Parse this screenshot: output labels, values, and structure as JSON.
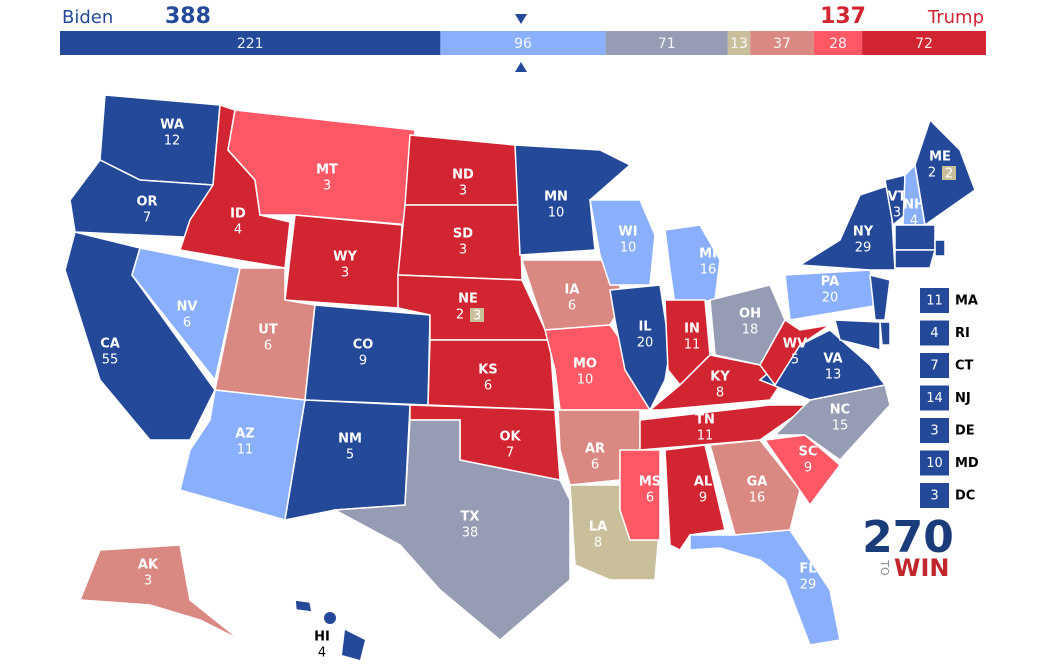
{
  "header": {
    "left_name": "Biden",
    "left_total": 388,
    "right_total": 137,
    "right_name": "Trump",
    "left_color": "#244999",
    "right_color": "#d22532"
  },
  "bar": {
    "segments": [
      {
        "value": 221,
        "color": "#244999"
      },
      {
        "value": 96,
        "color": "#8aaffd"
      },
      {
        "value": 71,
        "color": "#979cb5"
      },
      {
        "value": 13,
        "color": "#c9c09b"
      },
      {
        "value": 37,
        "color": "#d98982"
      },
      {
        "value": 28,
        "color": "#ff5865"
      },
      {
        "value": 72,
        "color": "#d22532"
      }
    ]
  },
  "states": [
    {
      "abbr": "WA",
      "ev": 12,
      "color": "#244999"
    },
    {
      "abbr": "OR",
      "ev": 7,
      "color": "#244999"
    },
    {
      "abbr": "CA",
      "ev": 55,
      "color": "#244999"
    },
    {
      "abbr": "NV",
      "ev": 6,
      "color": "#8aaffd"
    },
    {
      "abbr": "ID",
      "ev": 4,
      "color": "#d22532"
    },
    {
      "abbr": "MT",
      "ev": 3,
      "color": "#ff5865"
    },
    {
      "abbr": "WY",
      "ev": 3,
      "color": "#d22532"
    },
    {
      "abbr": "UT",
      "ev": 6,
      "color": "#d98982"
    },
    {
      "abbr": "AZ",
      "ev": 11,
      "color": "#8aaffd"
    },
    {
      "abbr": "CO",
      "ev": 9,
      "color": "#244999"
    },
    {
      "abbr": "NM",
      "ev": 5,
      "color": "#244999"
    },
    {
      "abbr": "ND",
      "ev": 3,
      "color": "#d22532"
    },
    {
      "abbr": "SD",
      "ev": 3,
      "color": "#d22532"
    },
    {
      "abbr": "NE",
      "ev": 2,
      "color": "#d22532",
      "district_ev": 3,
      "district_color": "#c9c09b"
    },
    {
      "abbr": "KS",
      "ev": 6,
      "color": "#d22532"
    },
    {
      "abbr": "OK",
      "ev": 7,
      "color": "#d22532"
    },
    {
      "abbr": "TX",
      "ev": 38,
      "color": "#979cb5"
    },
    {
      "abbr": "MN",
      "ev": 10,
      "color": "#244999"
    },
    {
      "abbr": "IA",
      "ev": 6,
      "color": "#d98982"
    },
    {
      "abbr": "MO",
      "ev": 10,
      "color": "#ff5865"
    },
    {
      "abbr": "AR",
      "ev": 6,
      "color": "#d98982"
    },
    {
      "abbr": "LA",
      "ev": 8,
      "color": "#c9c09b"
    },
    {
      "abbr": "WI",
      "ev": 10,
      "color": "#8aaffd"
    },
    {
      "abbr": "MI",
      "ev": 16,
      "color": "#8aaffd"
    },
    {
      "abbr": "IL",
      "ev": 20,
      "color": "#244999"
    },
    {
      "abbr": "IN",
      "ev": 11,
      "color": "#d22532"
    },
    {
      "abbr": "OH",
      "ev": 18,
      "color": "#979cb5"
    },
    {
      "abbr": "KY",
      "ev": 8,
      "color": "#d22532"
    },
    {
      "abbr": "TN",
      "ev": 11,
      "color": "#d22532"
    },
    {
      "abbr": "MS",
      "ev": 6,
      "color": "#ff5865"
    },
    {
      "abbr": "AL",
      "ev": 9,
      "color": "#d22532"
    },
    {
      "abbr": "GA",
      "ev": 16,
      "color": "#d98982"
    },
    {
      "abbr": "FL",
      "ev": 29,
      "color": "#8aaffd"
    },
    {
      "abbr": "SC",
      "ev": 9,
      "color": "#ff5865"
    },
    {
      "abbr": "NC",
      "ev": 15,
      "color": "#979cb5"
    },
    {
      "abbr": "VA",
      "ev": 13,
      "color": "#244999"
    },
    {
      "abbr": "WV",
      "ev": 5,
      "color": "#d22532"
    },
    {
      "abbr": "PA",
      "ev": 20,
      "color": "#8aaffd"
    },
    {
      "abbr": "NY",
      "ev": 29,
      "color": "#244999"
    },
    {
      "abbr": "VT",
      "ev": 3,
      "color": "#244999"
    },
    {
      "abbr": "NH",
      "ev": 4,
      "color": "#8aaffd"
    },
    {
      "abbr": "ME",
      "ev": 2,
      "color": "#244999",
      "district_ev": 2,
      "district_color": "#c9c09b"
    },
    {
      "abbr": "AK",
      "ev": 3,
      "color": "#d98982"
    },
    {
      "abbr": "HI",
      "ev": 4,
      "color": "#244999"
    }
  ],
  "small_states": [
    {
      "abbr": "MA",
      "ev": 11,
      "color": "#244999"
    },
    {
      "abbr": "RI",
      "ev": 4,
      "color": "#244999"
    },
    {
      "abbr": "CT",
      "ev": 7,
      "color": "#244999"
    },
    {
      "abbr": "NJ",
      "ev": 14,
      "color": "#244999"
    },
    {
      "abbr": "DE",
      "ev": 3,
      "color": "#244999"
    },
    {
      "abbr": "MD",
      "ev": 10,
      "color": "#244999"
    },
    {
      "abbr": "DC",
      "ev": 3,
      "color": "#244999"
    }
  ],
  "logo": {
    "number": "270",
    "to": "TO",
    "win": "WIN"
  }
}
